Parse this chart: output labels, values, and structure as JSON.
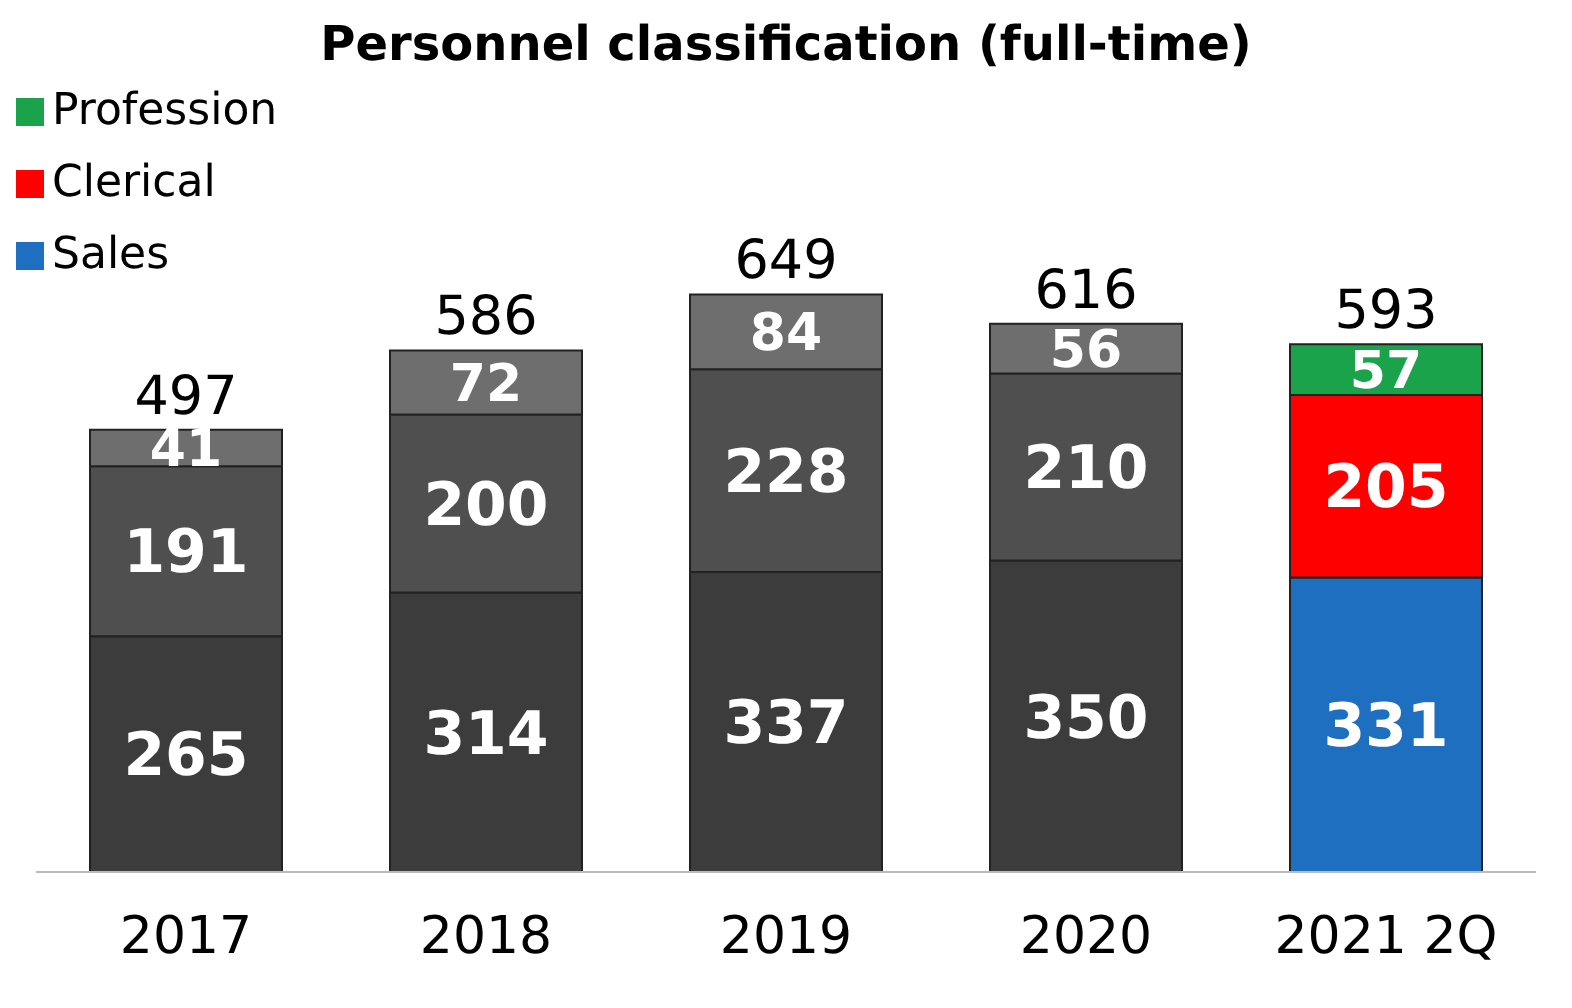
{
  "chart_data": {
    "type": "bar",
    "title": "Personnel classification (full-time)",
    "stacked": true,
    "data_labels": true,
    "legend": "top left",
    "grid": false,
    "categories": [
      "2017",
      "2018",
      "2019",
      "2020",
      "2021 2Q"
    ],
    "series": [
      {
        "name": "Sales",
        "color": "#1f6fc0",
        "colors": [
          "#3c3c3c",
          "#3c3c3c",
          "#3c3c3c",
          "#3c3c3c",
          "#1f6fc0"
        ],
        "values": [
          265,
          314,
          337,
          350,
          331
        ]
      },
      {
        "name": "Clerical",
        "color": "#ff0000",
        "colors": [
          "#4f4f4f",
          "#4f4f4f",
          "#4f4f4f",
          "#4f4f4f",
          "#ff0000"
        ],
        "values": [
          191,
          200,
          228,
          210,
          205
        ]
      },
      {
        "name": "Profession",
        "color": "#1aa34a",
        "colors": [
          "#6e6e6e",
          "#6e6e6e",
          "#6e6e6e",
          "#6e6e6e",
          "#1aa34a"
        ],
        "values": [
          41,
          72,
          84,
          56,
          57
        ]
      }
    ],
    "totals": [
      "497",
      "586",
      "649",
      "616",
      "593"
    ]
  }
}
